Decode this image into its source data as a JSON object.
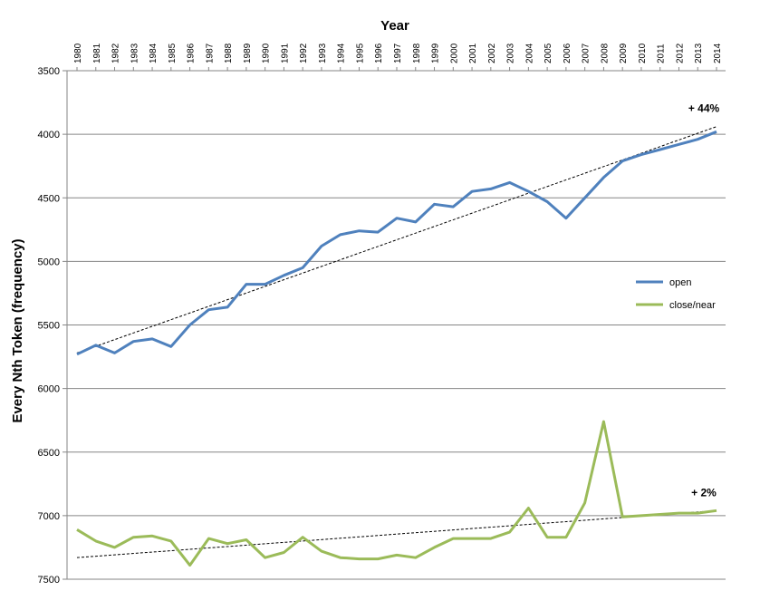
{
  "chart_data": {
    "type": "line",
    "title": "",
    "xlabel": "Year",
    "ylabel": "Every Nth Token (frequency)",
    "x_axis_position": "top",
    "y_axis_inverted": true,
    "ylim": [
      3500,
      7500
    ],
    "yticks": [
      3500,
      4000,
      4500,
      5000,
      5500,
      6000,
      6500,
      7000,
      7500
    ],
    "grid": true,
    "legend_position": "right",
    "x": [
      "1980",
      "1981",
      "1982",
      "1983",
      "1984",
      "1985",
      "1986",
      "1987",
      "1988",
      "1989",
      "1990",
      "1991",
      "1992",
      "1993",
      "1994",
      "1995",
      "1996",
      "1997",
      "1998",
      "1999",
      "2000",
      "2001",
      "2002",
      "2003",
      "2004",
      "2005",
      "2006",
      "2007",
      "2008",
      "2009",
      "2010",
      "2011",
      "2012",
      "2013",
      "2014"
    ],
    "series": [
      {
        "name": "open",
        "color": "#4F81BD",
        "values": [
          5730,
          5660,
          5720,
          5630,
          5610,
          5670,
          5500,
          5380,
          5360,
          5180,
          5180,
          5110,
          5050,
          4880,
          4790,
          4760,
          4770,
          4660,
          4690,
          4550,
          4570,
          4450,
          4430,
          4380,
          4450,
          4530,
          4660,
          4500,
          4340,
          4210,
          4160,
          4120,
          4080,
          4040,
          3980
        ],
        "trend": {
          "start": 5720,
          "end": 3940,
          "color": "#000000",
          "style": "dashed"
        },
        "annotation": "+ 44%"
      },
      {
        "name": "close/near",
        "color": "#9BBB59",
        "values": [
          7110,
          7200,
          7250,
          7170,
          7160,
          7200,
          7390,
          7180,
          7220,
          7190,
          7330,
          7290,
          7170,
          7280,
          7330,
          7340,
          7340,
          7310,
          7330,
          7250,
          7180,
          7180,
          7180,
          7130,
          6940,
          7170,
          7170,
          6900,
          6260,
          7010,
          7000,
          6990,
          6980,
          6980,
          6960
        ],
        "trend": {
          "start": 7330,
          "end": 6960,
          "color": "#000000",
          "style": "dashed"
        },
        "annotation": "+ 2%"
      }
    ]
  }
}
